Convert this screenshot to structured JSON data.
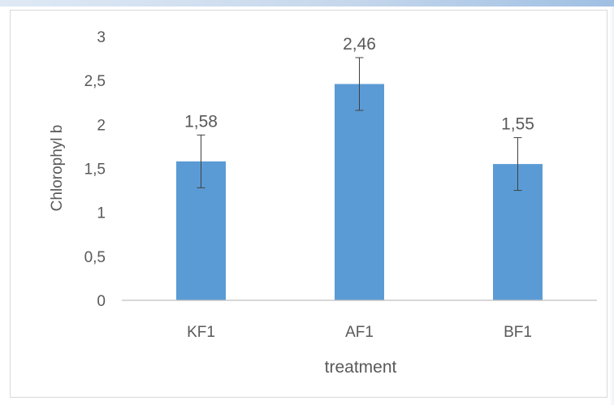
{
  "chart_data": {
    "type": "bar",
    "categories": [
      "KF1",
      "AF1",
      "BF1"
    ],
    "values": [
      1.58,
      2.46,
      1.55
    ],
    "value_labels": [
      "1,58",
      "2,46",
      "1,55"
    ],
    "error_bars": [
      0.3,
      0.3,
      0.3
    ],
    "xlabel": "treatment",
    "ylabel": "Chlorophyl  b",
    "ylim": [
      0,
      3
    ],
    "yticks": [
      0,
      0.5,
      1,
      1.5,
      2,
      2.5,
      3
    ],
    "ytick_labels": [
      "0",
      "0,5",
      "1",
      "1,5",
      "2",
      "2,5",
      "3"
    ],
    "grid": false,
    "legend": "none",
    "colors": {
      "bar": "#5b9bd5",
      "axis": "#bfbfbf",
      "text": "#595959",
      "error": "#404040"
    }
  }
}
